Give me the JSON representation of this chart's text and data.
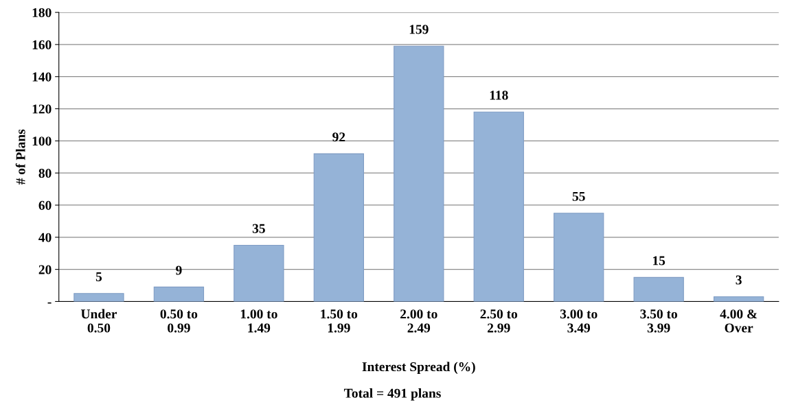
{
  "chart_data": {
    "type": "bar",
    "categories": [
      "Under\n0.50",
      "0.50 to\n0.99",
      "1.00 to\n1.49",
      "1.50 to\n1.99",
      "2.00 to\n2.49",
      "2.50 to\n2.99",
      "3.00 to\n3.49",
      "3.50 to\n3.99",
      "4.00 &\nOver"
    ],
    "values": [
      5,
      9,
      35,
      92,
      159,
      118,
      55,
      15,
      3
    ],
    "color": "#95b3d7",
    "xlabel": "Interest Spread (%)",
    "ylabel": "# of Plans",
    "annotations": [
      "Total = 491 plans"
    ],
    "ylim": [
      0,
      180
    ],
    "yticks": [
      {
        "value": 0,
        "label": "-"
      },
      20,
      40,
      60,
      80,
      100,
      120,
      140,
      160,
      180
    ],
    "grid": "y",
    "data_labels": true
  }
}
